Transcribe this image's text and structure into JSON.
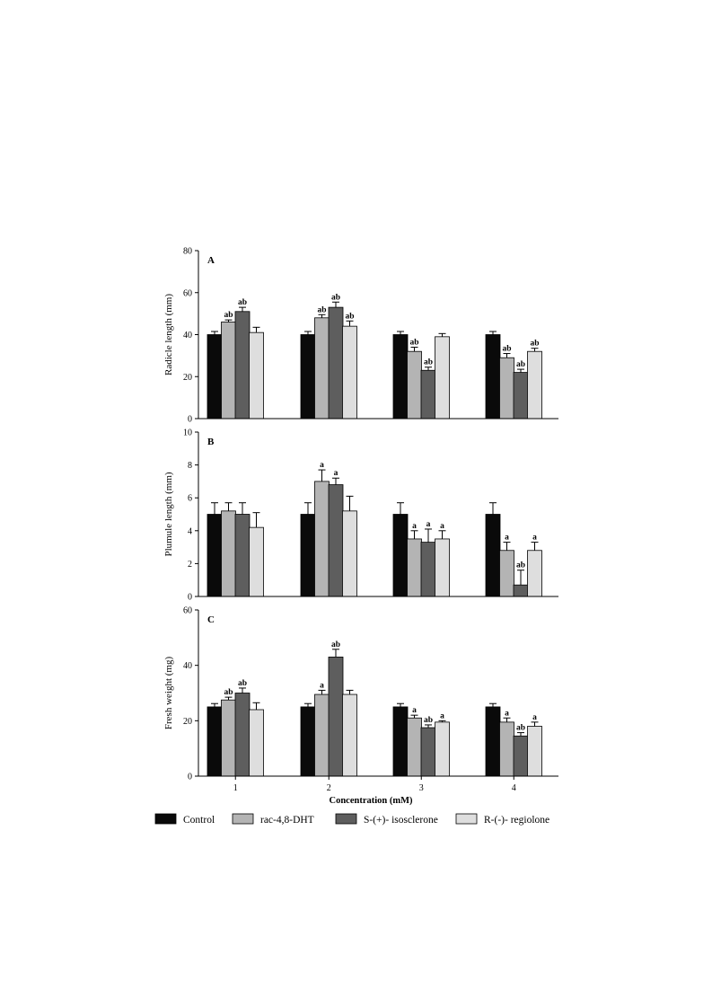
{
  "chart_data": {
    "type": "bar",
    "categories": [
      "1",
      "2",
      "3",
      "4"
    ],
    "xlabel": "Concentration (mM)",
    "legend": {
      "position": "bottom",
      "entries": [
        {
          "name": "Control",
          "color": "#0a0a0a"
        },
        {
          "name": "rac-4,8-DHT",
          "color": "#b4b4b4"
        },
        {
          "name": "S-(+)- isosclerone",
          "color": "#5e5e5e"
        },
        {
          "name": "R-(-)- regiolone",
          "color": "#dedede"
        }
      ]
    },
    "panels": [
      {
        "panel_label": "A",
        "ylabel": "Radicle length (mm)",
        "ylim": [
          0,
          80
        ],
        "yticks": [
          0,
          20,
          40,
          60,
          80
        ],
        "series": [
          {
            "name": "Control",
            "values": [
              40,
              40,
              40,
              40
            ],
            "errors": [
              1.5,
              1.5,
              1.5,
              1.5
            ],
            "labels": [
              "",
              "",
              "",
              ""
            ]
          },
          {
            "name": "rac-4,8-DHT",
            "values": [
              46,
              48,
              32,
              29
            ],
            "errors": [
              1,
              1.5,
              2,
              2
            ],
            "labels": [
              "ab",
              "ab",
              "ab",
              "ab"
            ]
          },
          {
            "name": "S-(+)- isosclerone",
            "values": [
              51,
              53,
              23,
              22
            ],
            "errors": [
              2,
              2.5,
              1.5,
              1.5
            ],
            "labels": [
              "ab",
              "ab",
              "ab",
              "ab"
            ]
          },
          {
            "name": "R-(-)- regiolone",
            "values": [
              41,
              44,
              39,
              32
            ],
            "errors": [
              2.5,
              2.5,
              1.5,
              1.5
            ],
            "labels": [
              "",
              "ab",
              "",
              "ab"
            ]
          }
        ]
      },
      {
        "panel_label": "B",
        "ylabel": "Plumule length (mm)",
        "ylim": [
          0,
          10
        ],
        "yticks": [
          0,
          2,
          4,
          6,
          8,
          10
        ],
        "series": [
          {
            "name": "Control",
            "values": [
              5,
              5,
              5,
              5
            ],
            "errors": [
              0.7,
              0.7,
              0.7,
              0.7
            ],
            "labels": [
              "",
              "",
              "",
              ""
            ]
          },
          {
            "name": "rac-4,8-DHT",
            "values": [
              5.2,
              7,
              3.5,
              2.8
            ],
            "errors": [
              0.5,
              0.7,
              0.5,
              0.5
            ],
            "labels": [
              "",
              "a",
              "a",
              "a"
            ]
          },
          {
            "name": "S-(+)- isosclerone",
            "values": [
              5,
              6.8,
              3.3,
              0.7
            ],
            "errors": [
              0.7,
              0.4,
              0.8,
              0.9
            ],
            "labels": [
              "",
              "a",
              "a",
              "ab"
            ]
          },
          {
            "name": "R-(-)- regiolone",
            "values": [
              4.2,
              5.2,
              3.5,
              2.8
            ],
            "errors": [
              0.9,
              0.9,
              0.5,
              0.5
            ],
            "labels": [
              "",
              "",
              "a",
              "a"
            ]
          }
        ]
      },
      {
        "panel_label": "C",
        "ylabel": "Fresh weight (mg)",
        "ylim": [
          0,
          60
        ],
        "yticks": [
          0,
          20,
          40,
          60
        ],
        "series": [
          {
            "name": "Control",
            "values": [
              25,
              25,
              25,
              25
            ],
            "errors": [
              1.2,
              1.2,
              1.2,
              1.2
            ],
            "labels": [
              "",
              "",
              "",
              ""
            ]
          },
          {
            "name": "rac-4,8-DHT",
            "values": [
              27.5,
              29.5,
              21,
              19.5
            ],
            "errors": [
              1,
              1.5,
              1,
              1.5
            ],
            "labels": [
              "ab",
              "a",
              "a",
              "a"
            ]
          },
          {
            "name": "S-(+)- isosclerone",
            "values": [
              30,
              43,
              17.5,
              14.5
            ],
            "errors": [
              1.8,
              2.8,
              1,
              1.2
            ],
            "labels": [
              "ab",
              "ab",
              "ab",
              "ab"
            ]
          },
          {
            "name": "R-(-)- regiolone",
            "values": [
              24,
              29.5,
              19.5,
              18
            ],
            "errors": [
              2.5,
              1.5,
              0.5,
              1.5
            ],
            "labels": [
              "",
              "",
              "a",
              "a"
            ]
          }
        ]
      }
    ]
  }
}
